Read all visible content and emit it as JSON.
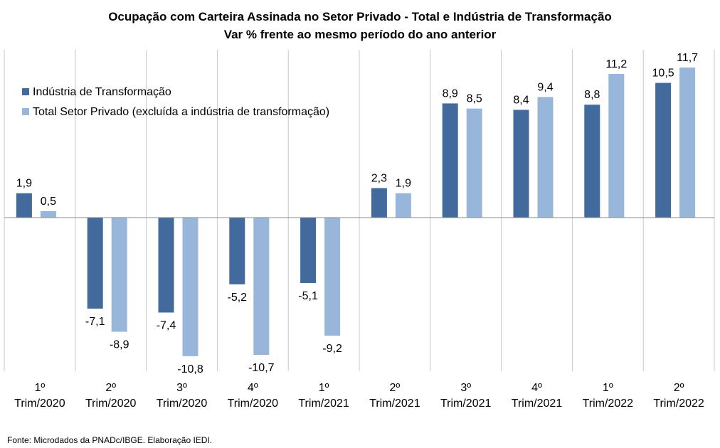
{
  "chart_data": {
    "type": "bar",
    "title": "Ocupação com Carteira Assinada no Setor Privado - Total e Indústria de Transformação",
    "subtitle": "Var % frente ao mesmo período do ano anterior",
    "categories": [
      [
        "1º",
        "Trim/2020"
      ],
      [
        "2º",
        "Trim/2020"
      ],
      [
        "3º",
        "Trim/2020"
      ],
      [
        "4º",
        "Trim/2020"
      ],
      [
        "1º",
        "Trim/2021"
      ],
      [
        "2º",
        "Trim/2021"
      ],
      [
        "3º",
        "Trim/2021"
      ],
      [
        "4º",
        "Trim/2021"
      ],
      [
        "1º",
        "Trim/2022"
      ],
      [
        "2º",
        "Trim/2022"
      ]
    ],
    "series": [
      {
        "name": "Indústria de Transformação",
        "color": "#426a9c",
        "values": [
          1.9,
          -7.1,
          -7.4,
          -5.2,
          -5.1,
          2.3,
          8.9,
          8.4,
          8.8,
          10.5
        ],
        "labels": [
          "1,9",
          "-7,1",
          "-7,4",
          "-5,2",
          "-5,1",
          "2,3",
          "8,9",
          "8,4",
          "8,8",
          "10,5"
        ]
      },
      {
        "name": "Total Setor Privado (excluída a indústria de transformação)",
        "color": "#98b5da",
        "values": [
          0.5,
          -8.9,
          -10.8,
          -10.7,
          -9.2,
          1.9,
          8.5,
          9.4,
          11.2,
          11.7
        ],
        "labels": [
          "0,5",
          "-8,9",
          "-10,8",
          "-10,7",
          "-9,2",
          "1,9",
          "8,5",
          "9,4",
          "11,2",
          "11,7"
        ]
      }
    ],
    "ylim": [
      -12,
      13
    ],
    "legend_position": "top-left",
    "grid": "vertical category separators",
    "source": "Fonte: Microdados da PNADc/IBGE. Elaboração IEDI."
  }
}
